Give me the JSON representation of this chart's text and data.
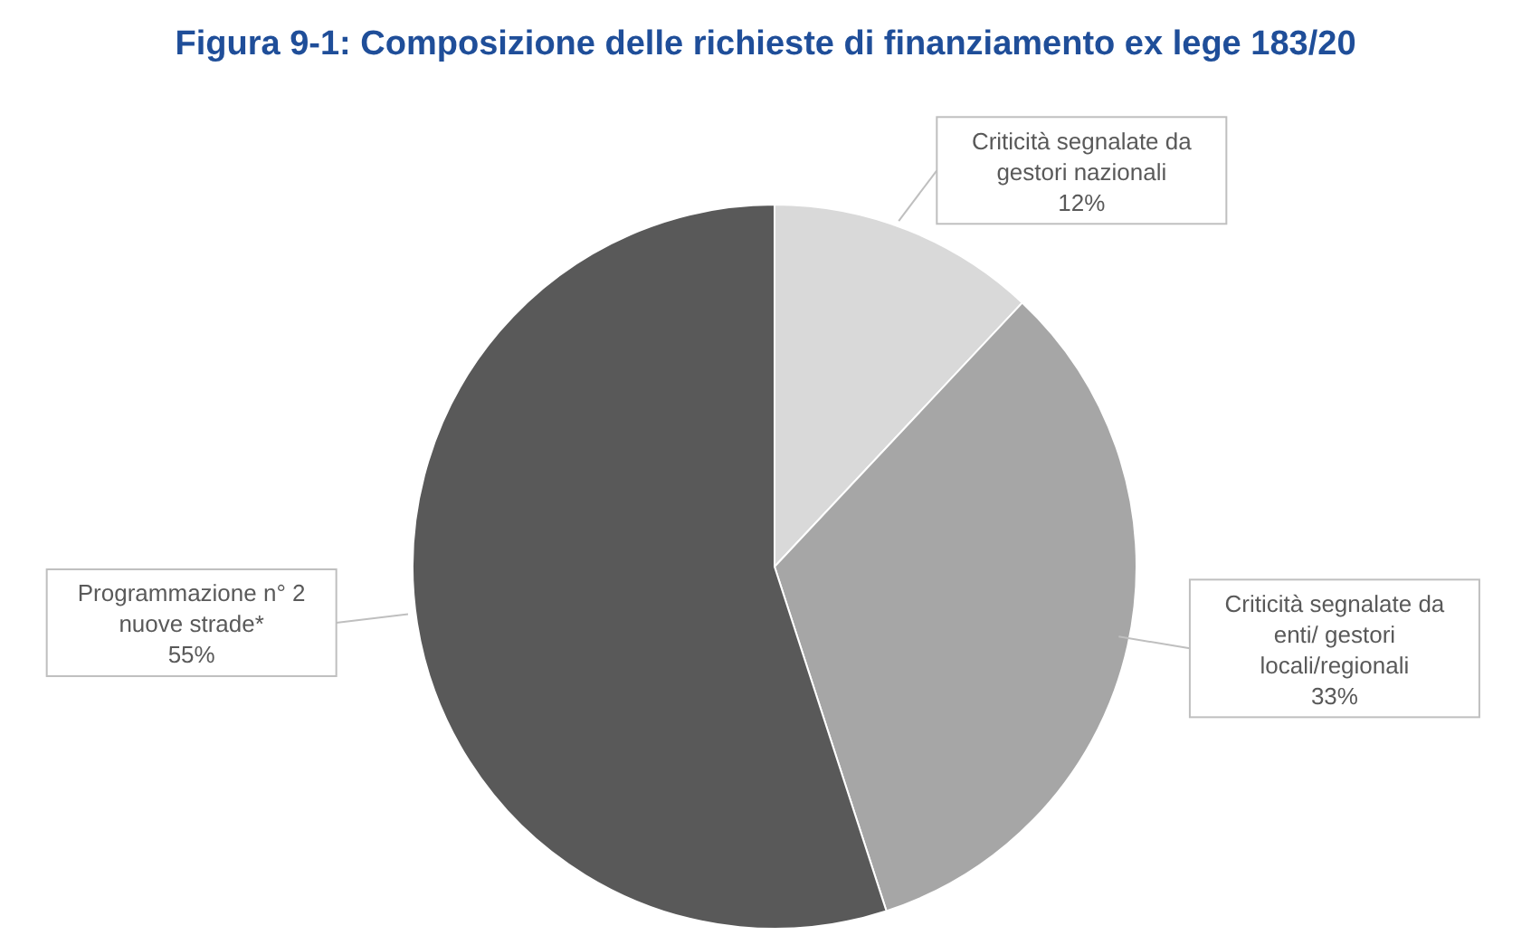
{
  "chart_data": {
    "type": "pie",
    "title": "Figura 9-1: Composizione delle richieste di finanziamento ex lege 183/20",
    "categories": [
      "Criticità segnalate da gestori nazionali",
      "Criticità segnalate da enti/ gestori locali/regionali",
      "Programmazione n° 2 nuove strade*"
    ],
    "values": [
      12,
      33,
      55
    ],
    "colors": [
      "#d9d9d9",
      "#a6a6a6",
      "#595959"
    ],
    "value_labels": [
      "12%",
      "33%",
      "55%"
    ],
    "legend": false
  }
}
